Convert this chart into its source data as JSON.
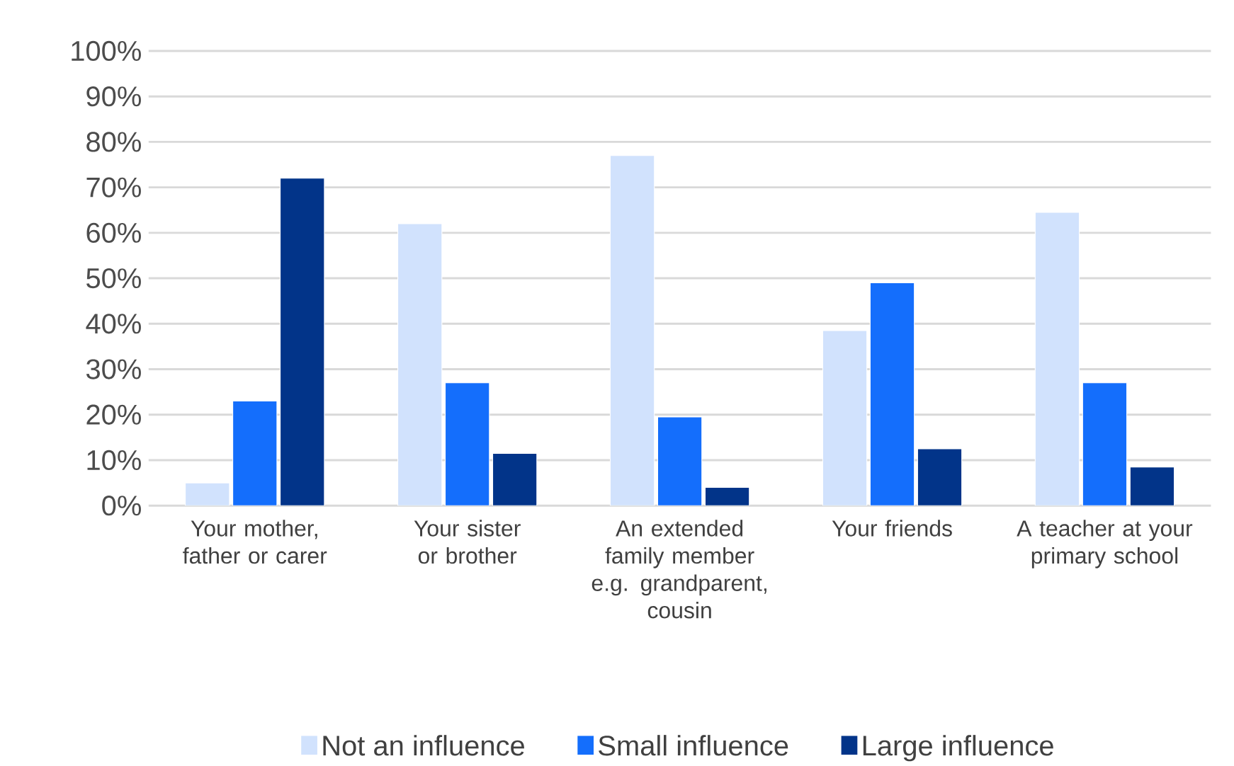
{
  "chart_data": {
    "type": "bar",
    "categories": [
      "Your mother, father or carer",
      "Your sister or brother",
      "An extended family member e.g. grandparent, cousin",
      "Your friends",
      "A teacher at your primary school"
    ],
    "series": [
      {
        "name": "Not an influence",
        "color": "#d1e2fd",
        "values": [
          5,
          62,
          77,
          38.5,
          64.5
        ]
      },
      {
        "name": "Small influence",
        "color": "#146efc",
        "values": [
          23,
          27,
          19.5,
          49,
          27
        ]
      },
      {
        "name": "Large influence",
        "color": "#023489",
        "values": [
          72,
          11.5,
          4,
          12.5,
          8.5
        ]
      }
    ],
    "ylim": [
      0,
      100
    ],
    "yticks": [
      {
        "value": 0,
        "label": "0%"
      },
      {
        "value": 10,
        "label": "10%"
      },
      {
        "value": 20,
        "label": "20%"
      },
      {
        "value": 30,
        "label": "30%"
      },
      {
        "value": 40,
        "label": "40%"
      },
      {
        "value": 50,
        "label": "50%"
      },
      {
        "value": 60,
        "label": "60%"
      },
      {
        "value": 70,
        "label": "70%"
      },
      {
        "value": 80,
        "label": "80%"
      },
      {
        "value": 90,
        "label": "90%"
      },
      {
        "value": 100,
        "label": "100%"
      }
    ],
    "grid": "y",
    "legend": "bottom"
  }
}
